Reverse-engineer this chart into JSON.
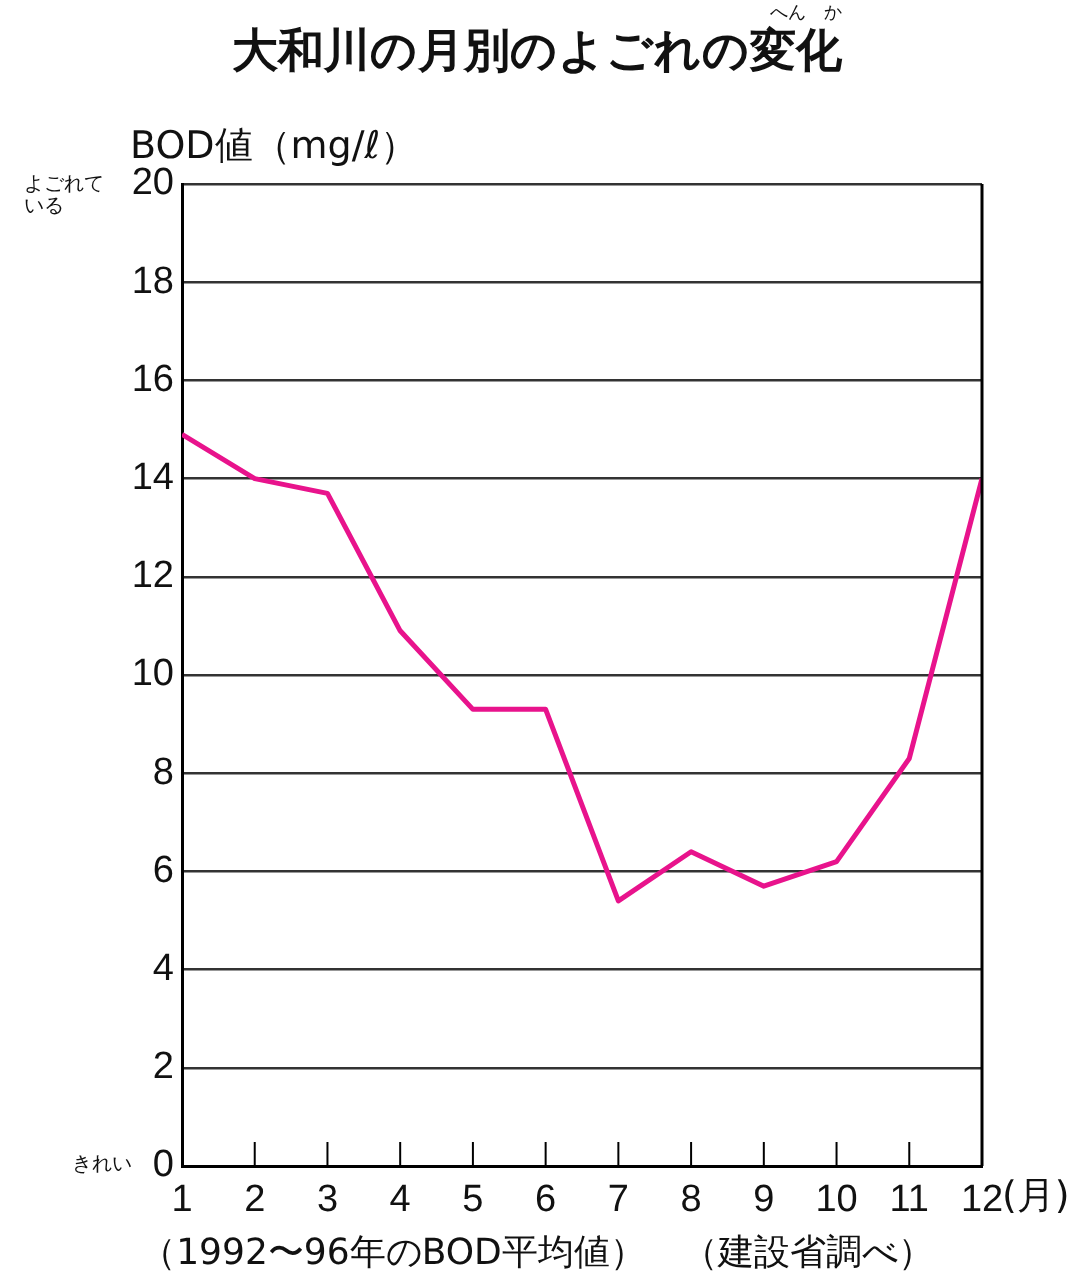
{
  "chart_data": {
    "type": "line",
    "title": "大和川の月別のよごれの変化",
    "ylabel": "BOD値（mg/ℓ）",
    "xlabel": "(月)",
    "x": [
      1,
      2,
      3,
      4,
      5,
      6,
      7,
      8,
      9,
      10,
      11,
      12
    ],
    "series": [
      {
        "color": "#e8138c",
        "values": [
          14.9,
          14.0,
          13.7,
          10.9,
          9.3,
          9.3,
          5.4,
          6.4,
          5.7,
          6.2,
          8.3,
          14.0
        ]
      }
    ],
    "xlim": [
      1,
      12
    ],
    "xticks": [
      1,
      2,
      3,
      4,
      5,
      6,
      7,
      8,
      9,
      10,
      11,
      12
    ],
    "ylim": [
      0,
      20
    ],
    "yticks": [
      0,
      2,
      4,
      6,
      8,
      10,
      12,
      14,
      16,
      18,
      20
    ],
    "grid": "y",
    "legend": false,
    "marker": "none",
    "line_style": "solid",
    "annotations": [
      "へん　か",
      "よごれている",
      "きれい",
      "（1992〜96年のBOD平均値）　（建設省調べ）"
    ]
  }
}
